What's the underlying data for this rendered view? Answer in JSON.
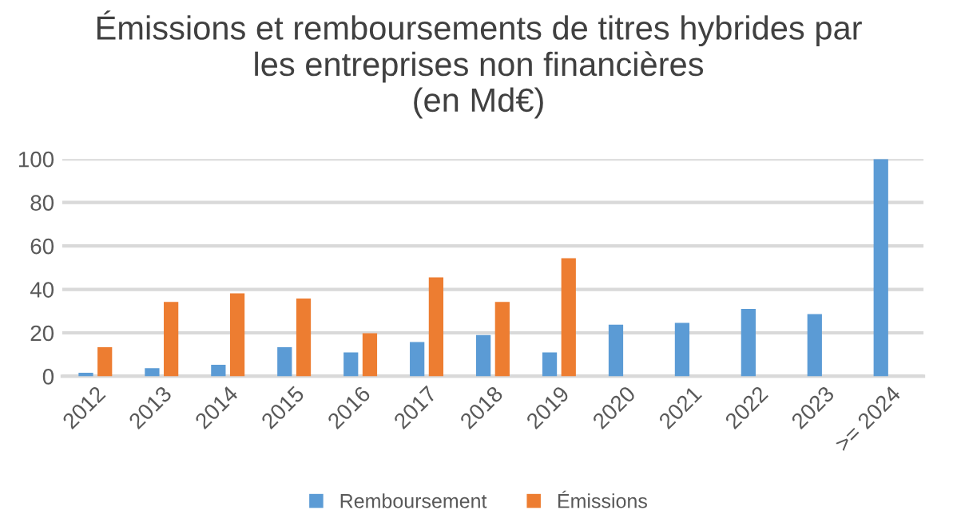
{
  "chart_data": {
    "type": "bar",
    "title": "Émissions et remboursements de titres hybrides par\nles entreprises non financières\n(en Md€)",
    "categories": [
      "2012",
      "2013",
      "2014",
      "2015",
      "2016",
      "2017",
      "2018",
      "2019",
      "2020",
      "2021",
      "2022",
      "2023",
      ">= 2024"
    ],
    "series": [
      {
        "name": "Remboursement",
        "color": "#5b9bd5",
        "values": [
          1.6,
          3.7,
          5.3,
          13.4,
          11,
          15.8,
          19,
          11,
          23.8,
          24.6,
          31,
          28.6,
          100
        ]
      },
      {
        "name": "Émissions",
        "color": "#ed7d31",
        "values": [
          13.4,
          34.2,
          38.2,
          35.8,
          19.8,
          45.5,
          34.2,
          54.3,
          null,
          null,
          null,
          null,
          null
        ]
      }
    ],
    "ylim": [
      0,
      100
    ],
    "yticks": [
      0,
      20,
      40,
      60,
      80,
      100
    ],
    "grid": "y",
    "legend": "bottom"
  }
}
